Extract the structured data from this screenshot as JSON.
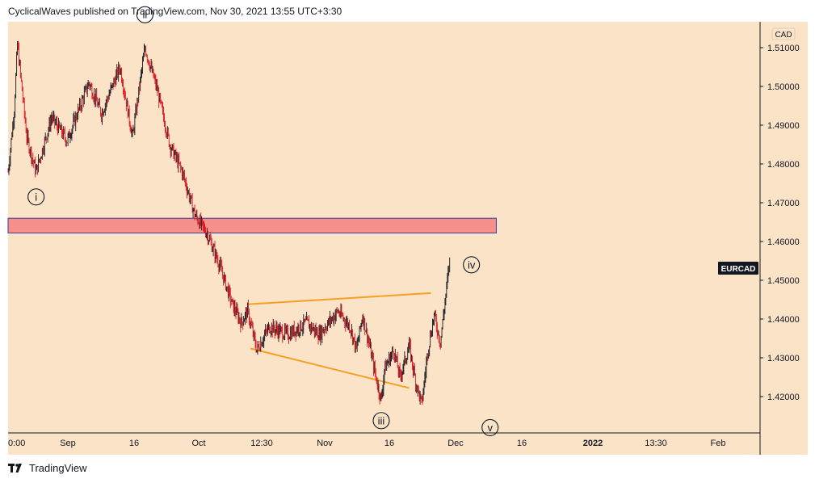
{
  "header": {
    "publisher_text": "CyclicalWaves published on TradingView.com, Nov 30, 2021 13:55 UTC+3:30"
  },
  "footer": {
    "brand": "TradingView",
    "logo_icon": "tradingview-logo-icon"
  },
  "colors": {
    "background": "#fbe3c8",
    "up_candle": "#131722",
    "down_candle": "#e0101a",
    "zone_fill": "#f5908a",
    "zone_border": "#3a3aa0",
    "trendline": "#f5a020",
    "axis_text": "#131722"
  },
  "chart_data": {
    "type": "candlestick",
    "symbol_label": "EURCAD",
    "currency_label": "CAD",
    "y_ticks": [
      "1.51000",
      "1.50000",
      "1.49000",
      "1.48000",
      "1.47000",
      "1.46000",
      "1.45000",
      "1.44000",
      "1.43000",
      "1.42000"
    ],
    "x_ticks": [
      "0:00",
      "Sep",
      "16",
      "Oct",
      "12:30",
      "Nov",
      "16",
      "Dec",
      "16",
      "2022",
      "13:30",
      "Feb"
    ],
    "ylim": [
      1.4126,
      1.5215
    ],
    "price_path": [
      [
        0,
        1.478
      ],
      [
        2,
        1.494
      ],
      [
        3,
        1.511
      ],
      [
        6,
        1.487
      ],
      [
        9,
        1.478
      ],
      [
        14,
        1.492
      ],
      [
        19,
        1.486
      ],
      [
        26,
        1.501
      ],
      [
        30,
        1.493
      ],
      [
        36,
        1.505
      ],
      [
        40,
        1.487
      ],
      [
        44,
        1.51
      ],
      [
        48,
        1.499
      ],
      [
        52,
        1.485
      ],
      [
        56,
        1.478
      ],
      [
        60,
        1.467
      ],
      [
        64,
        1.462
      ],
      [
        68,
        1.454
      ],
      [
        72,
        1.444
      ],
      [
        75,
        1.439
      ],
      [
        77,
        1.442
      ],
      [
        80,
        1.432
      ],
      [
        84,
        1.438
      ],
      [
        90,
        1.436
      ],
      [
        96,
        1.439
      ],
      [
        100,
        1.436
      ],
      [
        106,
        1.442
      ],
      [
        110,
        1.438
      ],
      [
        112,
        1.432
      ],
      [
        114,
        1.441
      ],
      [
        116,
        1.434
      ],
      [
        118,
        1.426
      ],
      [
        120,
        1.419
      ],
      [
        121,
        1.427
      ],
      [
        124,
        1.432
      ],
      [
        126,
        1.425
      ],
      [
        129,
        1.433
      ],
      [
        131,
        1.424
      ],
      [
        133,
        1.418
      ],
      [
        135,
        1.432
      ],
      [
        137,
        1.441
      ],
      [
        139,
        1.434
      ],
      [
        142,
        1.455
      ]
    ],
    "wave_labels": [
      {
        "label": "i",
        "x": 9,
        "y": 1.4715
      },
      {
        "label": "ii",
        "x": 44,
        "y": 1.5185
      },
      {
        "label": "iii",
        "x": 120,
        "y": 1.4138
      },
      {
        "label": "iv",
        "x": 149,
        "y": 1.454
      },
      {
        "label": "v",
        "x": 155,
        "y": 1.412
      }
    ],
    "resistance_zone": {
      "x_from": 0,
      "x_to": 157,
      "y_from": 1.4622,
      "y_to": 1.466
    },
    "triangle_lines": [
      {
        "from": [
          77,
          1.4438
        ],
        "to": [
          136,
          1.4467
        ]
      },
      {
        "from": [
          78,
          1.4324
        ],
        "to": [
          129,
          1.4222
        ]
      }
    ],
    "grid": false,
    "legend": "none"
  }
}
